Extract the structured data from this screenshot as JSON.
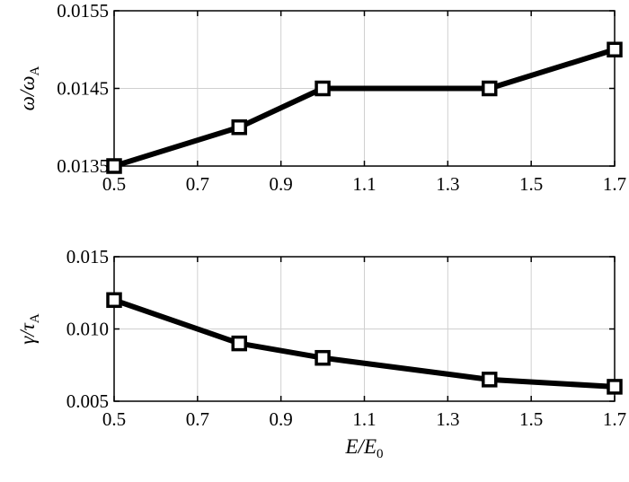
{
  "chart_data": [
    {
      "type": "line",
      "ylabel": {
        "main": "ω/ω",
        "sub": "A"
      },
      "x": [
        0.5,
        0.8,
        1.0,
        1.4,
        1.7
      ],
      "series": [
        {
          "values": [
            0.0135,
            0.014,
            0.0145,
            0.0145,
            0.015
          ]
        }
      ],
      "xlim": [
        0.5,
        1.7
      ],
      "ylim": [
        0.0135,
        0.0155
      ],
      "xticks": [
        "0.5",
        "0.7",
        "0.9",
        "1.1",
        "1.3",
        "1.5",
        "1.7"
      ],
      "yticks": [
        "0.0135",
        "0.0145",
        "0.0155"
      ],
      "grid": true,
      "marker": "square"
    },
    {
      "type": "line",
      "ylabel": {
        "main": "γ/τ",
        "sub": "A"
      },
      "xlabel": {
        "main": "E/E",
        "sub": "0"
      },
      "x": [
        0.5,
        0.8,
        1.0,
        1.4,
        1.7
      ],
      "series": [
        {
          "values": [
            0.012,
            0.009,
            0.008,
            0.0065,
            0.006
          ]
        }
      ],
      "xlim": [
        0.5,
        1.7
      ],
      "ylim": [
        0.005,
        0.015
      ],
      "xticks": [
        "0.5",
        "0.7",
        "0.9",
        "1.1",
        "1.3",
        "1.5",
        "1.7"
      ],
      "yticks": [
        "0.005",
        "0.010",
        "0.015"
      ],
      "grid": true,
      "marker": "square"
    }
  ]
}
